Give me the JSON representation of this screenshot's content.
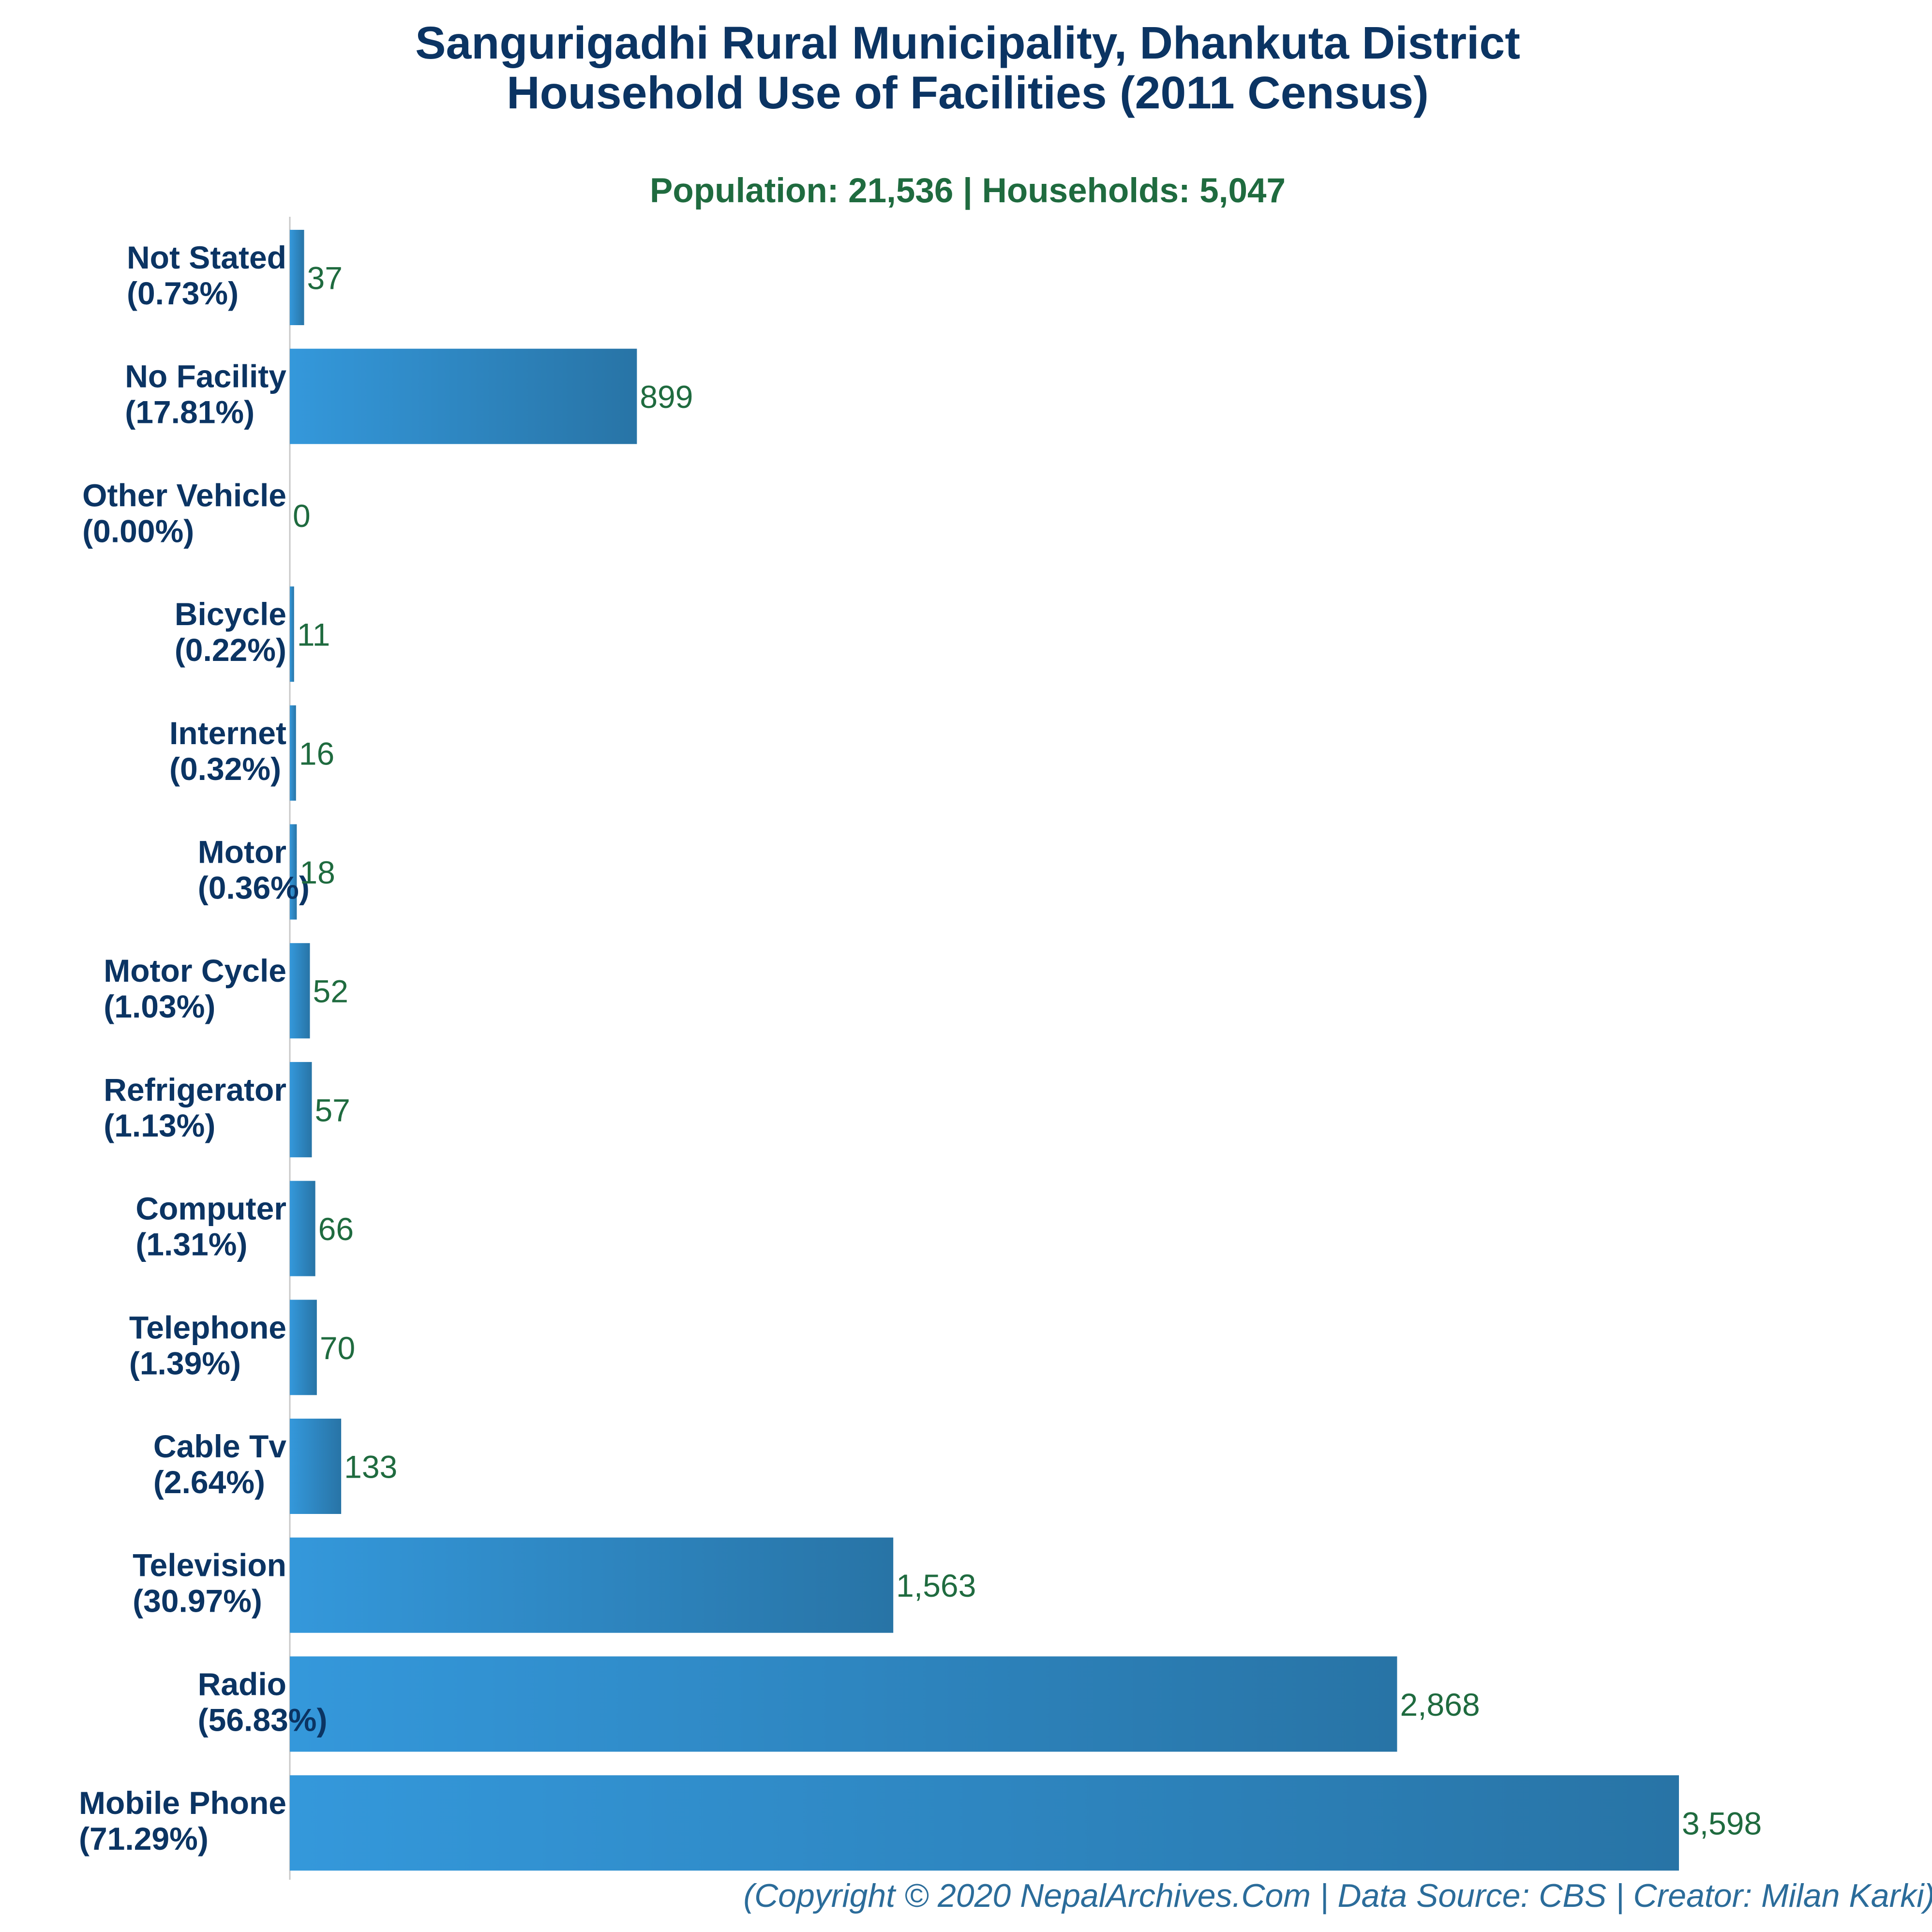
{
  "chart_data": {
    "type": "bar",
    "orientation": "horizontal",
    "title": [
      "Sangurigadhi Rural Municipality, Dhankuta District",
      "Household Use of Facilities (2011 Census)"
    ],
    "subtitle": "Population: 21,536 | Households: 5,047",
    "categories": [
      "Not Stated",
      "No Facility",
      "Other Vehicle",
      "Bicycle",
      "Internet",
      "Motor",
      "Motor Cycle",
      "Refrigerator",
      "Computer",
      "Telephone",
      "Cable Tv",
      "Television",
      "Radio",
      "Mobile Phone"
    ],
    "percent_labels": [
      "(0.73%)",
      "(17.81%)",
      "(0.00%)",
      "(0.22%)",
      "(0.32%)",
      "(0.36%)",
      "(1.03%)",
      "(1.13%)",
      "(1.31%)",
      "(1.39%)",
      "(2.64%)",
      "(30.97%)",
      "(56.83%)",
      "(71.29%)"
    ],
    "values": [
      37,
      899,
      0,
      11,
      16,
      18,
      52,
      57,
      66,
      70,
      133,
      1563,
      2868,
      3598
    ],
    "value_labels": [
      "37",
      "899",
      "0",
      "11",
      "16",
      "18",
      "52",
      "57",
      "66",
      "70",
      "133",
      "1,563",
      "2,868",
      "3,598"
    ],
    "xlim": [
      0,
      3598
    ],
    "grid": false,
    "legend": "none",
    "colors": {
      "bar_start": "#3498db",
      "bar_end": "#2874a6",
      "title": "#0b3463",
      "subtitle": "#1f6b3f",
      "value_label": "#1f6b3f",
      "axis": "#c8c8c8",
      "footer": "#2b6c9a"
    },
    "footer": "(Copyright © 2020 NepalArchives.Com | Data Source: CBS | Creator: Milan Karki)"
  }
}
